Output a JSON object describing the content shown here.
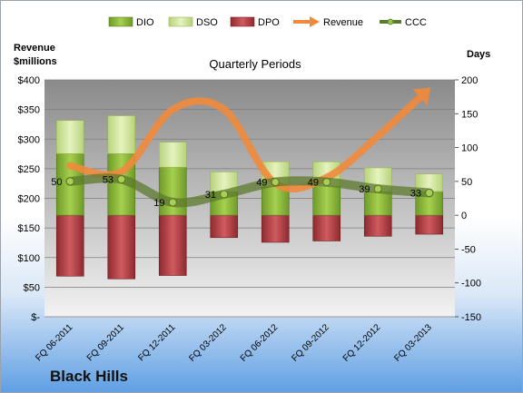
{
  "company": "Black Hills",
  "colors": {
    "dio": "#8fb93a",
    "dso": "#d4e89a",
    "dpo": "#b8393f",
    "revenue": "#ef8a3c",
    "ccc": "#5c7a2c"
  },
  "chart_data": {
    "type": "bar",
    "title": "Quarterly Periods",
    "left_axis_label": "Revenue\n$millions",
    "right_axis_label": "Days",
    "left_ylim": [
      0,
      400
    ],
    "left_ticks": [
      "$-",
      "$50",
      "$100",
      "$150",
      "$200",
      "$250",
      "$300",
      "$350",
      "$400"
    ],
    "right_ylim": [
      -150,
      200
    ],
    "right_ticks": [
      "-150",
      "-100",
      "-50",
      "0",
      "50",
      "100",
      "150",
      "200"
    ],
    "grid": true,
    "legend_position": "top",
    "categories": [
      "FQ 06-2011",
      "FQ 09-2011",
      "FQ 12-2011",
      "FQ 03-2012",
      "FQ 06-2012",
      "FQ 09-2012",
      "FQ 12-2012",
      "FQ 03-2013"
    ],
    "series": [
      {
        "name": "DIO",
        "axis": "right",
        "values": [
          91,
          91,
          71,
          35,
          43,
          43,
          35,
          35
        ]
      },
      {
        "name": "DSO",
        "axis": "right",
        "values": [
          49,
          56,
          37,
          29,
          36,
          36,
          35,
          26
        ]
      },
      {
        "name": "DPO",
        "axis": "right",
        "values": [
          -90,
          -94,
          -89,
          -33,
          -40,
          -38,
          -31,
          -28
        ]
      },
      {
        "name": "Revenue",
        "axis": "left",
        "values": [
          255,
          245,
          350,
          350,
          225,
          235,
          305,
          385
        ]
      },
      {
        "name": "CCC",
        "axis": "right",
        "values": [
          50,
          53,
          19,
          31,
          49,
          49,
          39,
          33
        ]
      }
    ],
    "ccc_labels": [
      "50",
      "53",
      "19",
      "31",
      "49",
      "49",
      "39",
      "33"
    ]
  }
}
